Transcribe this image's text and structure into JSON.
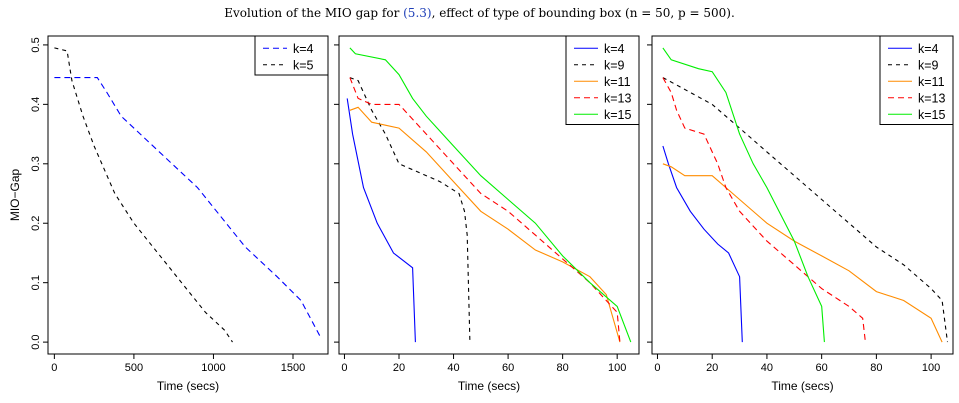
{
  "caption": {
    "prefix": "Evolution of the MIO gap for ",
    "ref": "(5.3)",
    "suffix": ", effect of type of bounding box (n = 50, p = 500)."
  },
  "chart_data": [
    {
      "type": "line",
      "xlabel": "Time (secs)",
      "ylabel": "MIO−Gap",
      "xlim": [
        -40,
        1720
      ],
      "ylim": [
        -0.02,
        0.515
      ],
      "xticks": [
        0,
        500,
        1000,
        1500
      ],
      "yticks": [
        0.0,
        0.1,
        0.2,
        0.3,
        0.4,
        0.5
      ],
      "show_y_tick_labels": true,
      "legend_position": "top-right",
      "series": [
        {
          "name": "k=4",
          "color": "#0000ff",
          "dash": "6,4",
          "x": [
            0,
            270,
            330,
            420,
            700,
            900,
            1050,
            1200,
            1400,
            1550,
            1670
          ],
          "y": [
            0.445,
            0.445,
            0.42,
            0.38,
            0.31,
            0.26,
            0.21,
            0.16,
            0.11,
            0.07,
            0.01
          ]
        },
        {
          "name": "k=5",
          "color": "#000000",
          "dash": "4,4",
          "x": [
            0,
            80,
            110,
            180,
            250,
            380,
            500,
            650,
            800,
            950,
            1070,
            1120
          ],
          "y": [
            0.495,
            0.49,
            0.44,
            0.38,
            0.33,
            0.25,
            0.2,
            0.15,
            0.1,
            0.05,
            0.02,
            0.0
          ]
        }
      ]
    },
    {
      "type": "line",
      "xlabel": "Time (secs)",
      "ylabel": "",
      "xlim": [
        -2,
        108
      ],
      "ylim": [
        -0.02,
        0.515
      ],
      "xticks": [
        0,
        20,
        40,
        60,
        80,
        100
      ],
      "yticks": [
        0.0,
        0.1,
        0.2,
        0.3,
        0.4,
        0.5
      ],
      "show_y_tick_labels": false,
      "legend_position": "top-right",
      "series": [
        {
          "name": "k=4",
          "color": "#0000ff",
          "dash": "",
          "x": [
            1,
            3,
            7,
            12,
            18,
            25,
            26
          ],
          "y": [
            0.41,
            0.35,
            0.26,
            0.2,
            0.15,
            0.125,
            0.0
          ]
        },
        {
          "name": "k=9",
          "color": "#000000",
          "dash": "4,4",
          "x": [
            2,
            5,
            10,
            15,
            20,
            25,
            35,
            42,
            44,
            45,
            46
          ],
          "y": [
            0.445,
            0.44,
            0.39,
            0.35,
            0.3,
            0.29,
            0.27,
            0.25,
            0.22,
            0.18,
            0.0
          ]
        },
        {
          "name": "k=11",
          "color": "#ff8c00",
          "dash": "",
          "x": [
            2,
            5,
            10,
            15,
            20,
            30,
            40,
            50,
            60,
            70,
            80,
            90,
            96,
            101
          ],
          "y": [
            0.39,
            0.395,
            0.37,
            0.365,
            0.36,
            0.32,
            0.27,
            0.22,
            0.19,
            0.155,
            0.135,
            0.11,
            0.08,
            0.0
          ]
        },
        {
          "name": "k=13",
          "color": "#ff0000",
          "dash": "6,4",
          "x": [
            2,
            5,
            10,
            15,
            20,
            30,
            40,
            50,
            60,
            70,
            80,
            90,
            100,
            101
          ],
          "y": [
            0.445,
            0.41,
            0.4,
            0.4,
            0.4,
            0.35,
            0.3,
            0.25,
            0.22,
            0.18,
            0.14,
            0.1,
            0.05,
            0.0
          ]
        },
        {
          "name": "k=15",
          "color": "#00ee00",
          "dash": "",
          "x": [
            2,
            4,
            15,
            20,
            25,
            30,
            40,
            50,
            60,
            70,
            80,
            90,
            100,
            105
          ],
          "y": [
            0.495,
            0.485,
            0.475,
            0.45,
            0.41,
            0.38,
            0.33,
            0.28,
            0.24,
            0.2,
            0.145,
            0.1,
            0.06,
            0.0
          ]
        }
      ]
    },
    {
      "type": "line",
      "xlabel": "Time (secs)",
      "ylabel": "",
      "xlim": [
        -2,
        108
      ],
      "ylim": [
        -0.02,
        0.515
      ],
      "xticks": [
        0,
        20,
        40,
        60,
        80,
        100
      ],
      "yticks": [
        0.0,
        0.1,
        0.2,
        0.3,
        0.4,
        0.5
      ],
      "show_y_tick_labels": false,
      "legend_position": "top-right",
      "series": [
        {
          "name": "k=4",
          "color": "#0000ff",
          "dash": "",
          "x": [
            2,
            4,
            7,
            12,
            17,
            22,
            26,
            30,
            31
          ],
          "y": [
            0.33,
            0.3,
            0.26,
            0.22,
            0.19,
            0.165,
            0.15,
            0.11,
            0.0
          ]
        },
        {
          "name": "k=9",
          "color": "#000000",
          "dash": "4,4",
          "x": [
            2,
            8,
            20,
            30,
            40,
            50,
            60,
            70,
            80,
            90,
            100,
            104,
            106
          ],
          "y": [
            0.445,
            0.43,
            0.4,
            0.36,
            0.32,
            0.28,
            0.24,
            0.2,
            0.16,
            0.13,
            0.09,
            0.07,
            0.0
          ]
        },
        {
          "name": "k=11",
          "color": "#ff8c00",
          "dash": "",
          "x": [
            2,
            5,
            10,
            20,
            30,
            40,
            50,
            60,
            70,
            80,
            90,
            100,
            104
          ],
          "y": [
            0.3,
            0.295,
            0.28,
            0.28,
            0.24,
            0.2,
            0.17,
            0.145,
            0.12,
            0.085,
            0.07,
            0.04,
            0.0
          ]
        },
        {
          "name": "k=13",
          "color": "#ff0000",
          "dash": "6,4",
          "x": [
            2,
            5,
            7,
            10,
            17,
            22,
            25,
            30,
            40,
            50,
            60,
            70,
            75,
            76
          ],
          "y": [
            0.445,
            0.42,
            0.39,
            0.36,
            0.35,
            0.3,
            0.26,
            0.22,
            0.17,
            0.13,
            0.09,
            0.06,
            0.04,
            0.0
          ]
        },
        {
          "name": "k=15",
          "color": "#00ee00",
          "dash": "",
          "x": [
            2,
            5,
            15,
            20,
            25,
            30,
            35,
            40,
            50,
            55,
            60,
            61
          ],
          "y": [
            0.495,
            0.475,
            0.46,
            0.455,
            0.42,
            0.35,
            0.3,
            0.26,
            0.17,
            0.11,
            0.06,
            0.0
          ]
        }
      ]
    }
  ]
}
